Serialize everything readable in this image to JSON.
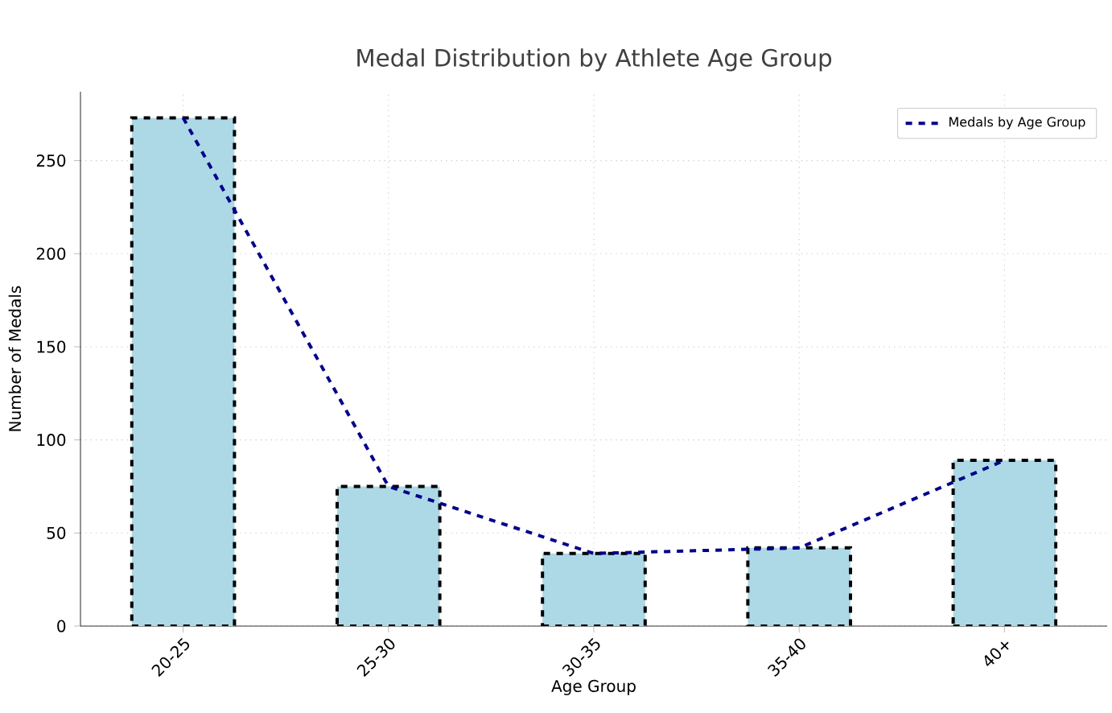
{
  "chart_data": {
    "type": "bar",
    "title": "Medal Distribution by Athlete Age Group",
    "xlabel": "Age Group",
    "ylabel": "Number of Medals",
    "categories": [
      "20-25",
      "25-30",
      "30-35",
      "35-40",
      "40+"
    ],
    "series": [
      {
        "color": "#add8e6",
        "values": [
          273,
          75,
          39,
          42,
          89
        ],
        "line_style": "dashed"
      },
      {
        "type": "line",
        "name": "Medals by Age Group",
        "color": "#00008b",
        "values": [
          273,
          75,
          39,
          42,
          89
        ],
        "line_style": "dashed",
        "marker": "none"
      }
    ],
    "ylim": [
      0,
      287
    ],
    "yticks": [
      0,
      50,
      100,
      150,
      200,
      250
    ],
    "grid": true,
    "legend": "top right"
  }
}
